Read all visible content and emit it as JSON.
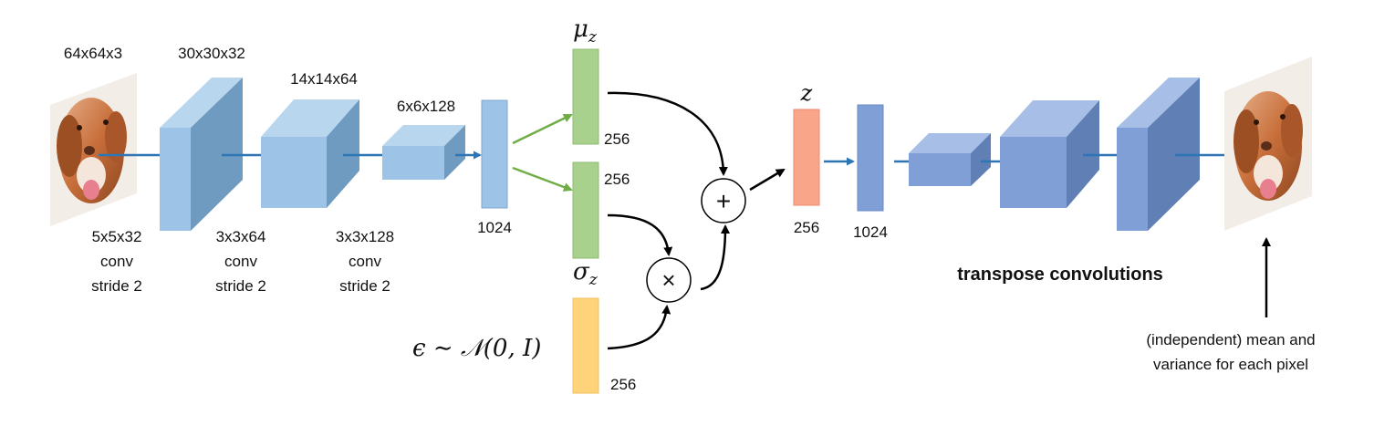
{
  "input_dim": "64x64x3",
  "enc_dims": [
    "30x30x32",
    "14x14x64",
    "6x6x128"
  ],
  "enc_ops": [
    [
      "5x5x32",
      "conv",
      "stride 2"
    ],
    [
      "3x3x64",
      "conv",
      "stride 2"
    ],
    [
      "3x3x128",
      "conv",
      "stride 2"
    ]
  ],
  "fc_enc": "1024",
  "mu_label": "μ",
  "mu_sub": "z",
  "mu_size": "256",
  "sigma_label": "σ",
  "sigma_sub": "z",
  "sigma_size": "256",
  "eps_label": "ϵ ∼ 𝒩(0, I)",
  "eps_size": "256",
  "plus_symbol": "+",
  "times_symbol": "×",
  "z_label": "z",
  "z_size": "256",
  "fc_dec": "1024",
  "decoder_caption": "transpose convolutions",
  "output_caption": [
    "(independent) mean and",
    "variance for each pixel"
  ],
  "colors": {
    "encoder_blue": "#9dc3e6",
    "decoder_blue": "#7f9fd6",
    "mu_green": "#a9d18e",
    "eps_orange": "#ffd37a",
    "z_salmon": "#f9a58a",
    "arrow_blue": "#2e75b6",
    "arrow_green": "#70ad47"
  }
}
